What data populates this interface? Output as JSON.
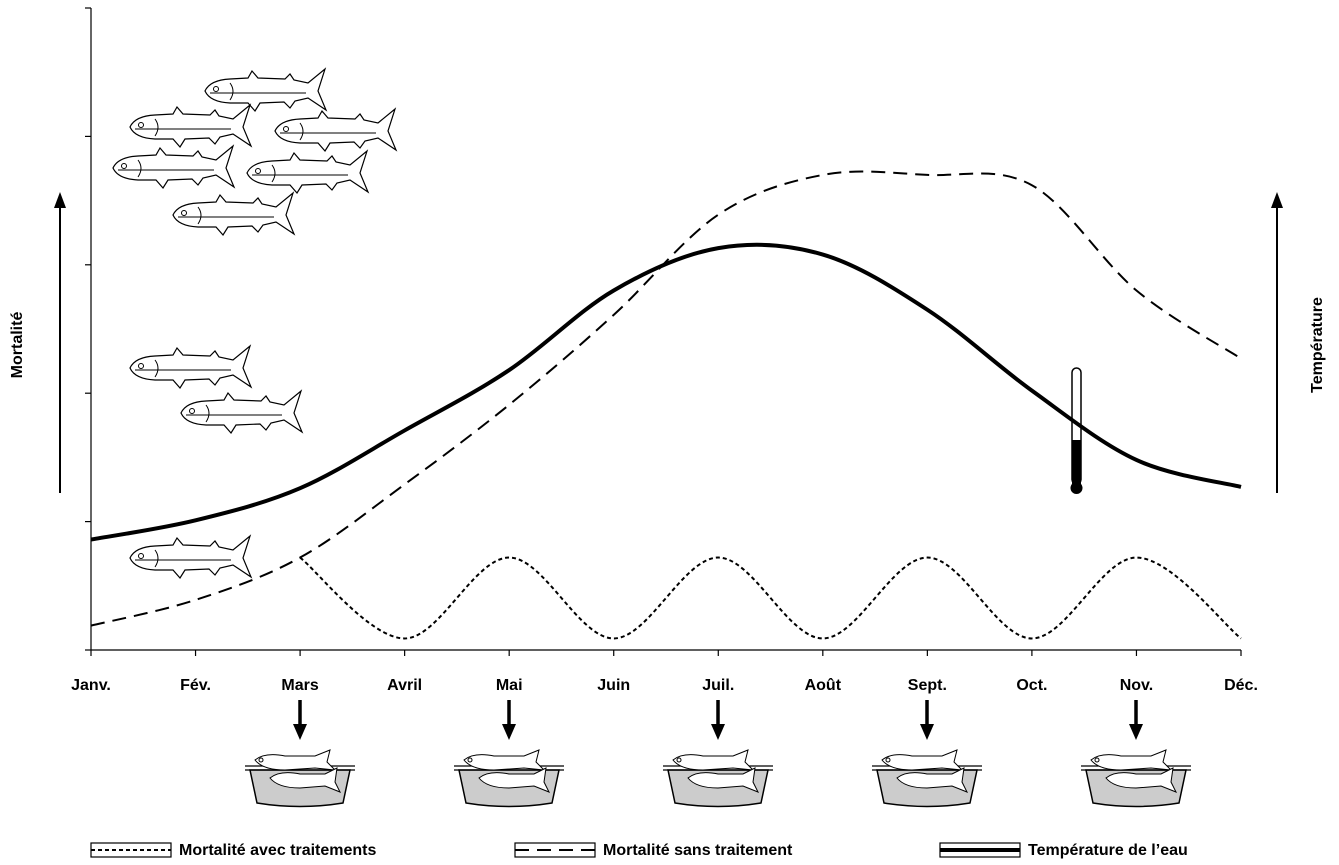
{
  "chart_data": {
    "type": "line",
    "y_label": "Mortalité",
    "y2_label": "Température",
    "categories": [
      "Janv.",
      "Fév.",
      "Mars",
      "Avril",
      "Mai",
      "Juin",
      "Juil.",
      "Août",
      "Sept.",
      "Oct.",
      "Nov.",
      "Déc."
    ],
    "series": [
      {
        "name": "Mortalité avec traitements",
        "color": "#000000",
        "style": "dotted",
        "values": [
          null,
          null,
          0.72,
          0.09,
          0.72,
          0.09,
          0.72,
          0.09,
          0.72,
          0.09,
          0.72,
          0.09
        ]
      },
      {
        "name": "Mortalité sans traitement",
        "color": "#000000",
        "style": "dashed",
        "values": [
          0.19,
          0.39,
          0.72,
          1.29,
          1.91,
          2.61,
          3.39,
          3.7,
          3.7,
          3.62,
          2.8,
          2.27
        ]
      },
      {
        "name": "Température de l’eau",
        "color": "#000000",
        "style": "thick",
        "values": [
          0.86,
          1.01,
          1.26,
          1.71,
          2.18,
          2.8,
          3.13,
          3.08,
          2.65,
          2.02,
          1.48,
          1.27
        ]
      }
    ],
    "ylim": [
      0,
      5
    ],
    "yticks": [
      0,
      1,
      2,
      3,
      4,
      5
    ]
  }
}
